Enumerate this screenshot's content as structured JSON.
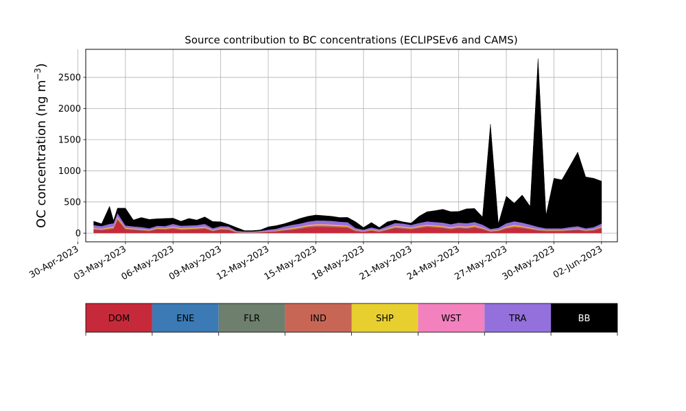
{
  "chart_data": {
    "type": "area",
    "stacked": true,
    "title": "Source contribution to BC concentrations (ECLIPSEv6 and CAMS)",
    "ylabel": "OC concentration (ng m",
    "ylabel_sup": "−3",
    "ylabel_close": ")",
    "xlabel": "",
    "grid": true,
    "x_range": [
      "2023-04-30T12:00",
      "2023-06-03T00:00"
    ],
    "ylim": [
      -140,
      2950
    ],
    "y_ticks": [
      0,
      500,
      1000,
      1500,
      2000,
      2500
    ],
    "y_tick_labels": [
      "0",
      "500",
      "1000",
      "1500",
      "2000",
      "2500"
    ],
    "x_ticks": [
      "2023-04-30",
      "2023-05-03",
      "2023-05-06",
      "2023-05-09",
      "2023-05-12",
      "2023-05-15",
      "2023-05-18",
      "2023-05-21",
      "2023-05-24",
      "2023-05-27",
      "2023-05-30",
      "2023-06-02"
    ],
    "x_tick_labels": [
      "30-Apr-2023",
      "03-May-2023",
      "06-May-2023",
      "09-May-2023",
      "12-May-2023",
      "15-May-2023",
      "18-May-2023",
      "21-May-2023",
      "24-May-2023",
      "27-May-2023",
      "30-May-2023",
      "02-Jun-2023"
    ],
    "x": [
      "2023-05-01T00:00",
      "2023-05-01T12:00",
      "2023-05-02T00:00",
      "2023-05-02T06:00",
      "2023-05-02T12:00",
      "2023-05-03T00:00",
      "2023-05-03T12:00",
      "2023-05-04T00:00",
      "2023-05-04T12:00",
      "2023-05-05T00:00",
      "2023-05-05T12:00",
      "2023-05-06T00:00",
      "2023-05-06T12:00",
      "2023-05-07T00:00",
      "2023-05-07T12:00",
      "2023-05-08T00:00",
      "2023-05-08T12:00",
      "2023-05-09T00:00",
      "2023-05-09T12:00",
      "2023-05-10T00:00",
      "2023-05-10T12:00",
      "2023-05-11T00:00",
      "2023-05-11T12:00",
      "2023-05-12T00:00",
      "2023-05-12T12:00",
      "2023-05-13T00:00",
      "2023-05-13T12:00",
      "2023-05-14T00:00",
      "2023-05-14T12:00",
      "2023-05-15T00:00",
      "2023-05-15T12:00",
      "2023-05-16T00:00",
      "2023-05-16T12:00",
      "2023-05-17T00:00",
      "2023-05-17T12:00",
      "2023-05-18T00:00",
      "2023-05-18T12:00",
      "2023-05-19T00:00",
      "2023-05-19T12:00",
      "2023-05-20T00:00",
      "2023-05-20T12:00",
      "2023-05-21T00:00",
      "2023-05-21T12:00",
      "2023-05-22T00:00",
      "2023-05-22T12:00",
      "2023-05-23T00:00",
      "2023-05-23T12:00",
      "2023-05-24T00:00",
      "2023-05-24T12:00",
      "2023-05-25T00:00",
      "2023-05-25T12:00",
      "2023-05-26T00:00",
      "2023-05-26T12:00",
      "2023-05-27T00:00",
      "2023-05-27T12:00",
      "2023-05-28T00:00",
      "2023-05-28T12:00",
      "2023-05-29T00:00",
      "2023-05-29T12:00",
      "2023-05-30T00:00",
      "2023-05-30T12:00",
      "2023-05-31T00:00",
      "2023-05-31T12:00",
      "2023-06-01T00:00",
      "2023-06-01T12:00",
      "2023-06-02T00:00"
    ],
    "series": [
      {
        "name": "DOM",
        "color": "#c62a3a",
        "values": [
          55,
          45,
          60,
          70,
          210,
          60,
          50,
          40,
          30,
          60,
          55,
          70,
          50,
          55,
          60,
          70,
          30,
          55,
          50,
          10,
          5,
          5,
          10,
          20,
          25,
          40,
          50,
          70,
          90,
          100,
          100,
          95,
          90,
          85,
          30,
          20,
          40,
          20,
          50,
          80,
          70,
          60,
          80,
          100,
          90,
          80,
          60,
          80,
          70,
          90,
          60,
          20,
          30,
          70,
          90,
          80,
          60,
          40,
          30,
          30,
          30,
          40,
          50,
          30,
          40,
          80
        ]
      },
      {
        "name": "ENE",
        "color": "#3b7ab5",
        "values": [
          3,
          3,
          3,
          3,
          5,
          3,
          3,
          3,
          3,
          3,
          3,
          3,
          3,
          3,
          3,
          3,
          3,
          3,
          3,
          2,
          2,
          2,
          2,
          2,
          2,
          3,
          3,
          3,
          3,
          3,
          3,
          3,
          3,
          3,
          3,
          2,
          2,
          2,
          3,
          3,
          3,
          3,
          3,
          3,
          3,
          3,
          3,
          3,
          3,
          3,
          3,
          3,
          3,
          3,
          3,
          3,
          3,
          3,
          3,
          3,
          3,
          3,
          3,
          3,
          3,
          3
        ]
      },
      {
        "name": "FLR",
        "color": "#6e7f6e",
        "values": [
          2,
          2,
          2,
          2,
          3,
          2,
          2,
          2,
          2,
          2,
          2,
          2,
          2,
          2,
          2,
          2,
          2,
          2,
          2,
          1,
          1,
          1,
          1,
          1,
          1,
          2,
          2,
          2,
          2,
          2,
          2,
          2,
          2,
          2,
          2,
          1,
          1,
          1,
          2,
          2,
          2,
          2,
          2,
          2,
          2,
          2,
          2,
          2,
          2,
          2,
          2,
          2,
          2,
          2,
          2,
          2,
          2,
          2,
          2,
          2,
          2,
          2,
          2,
          2,
          2,
          2
        ]
      },
      {
        "name": "IND",
        "color": "#c86656",
        "values": [
          10,
          10,
          15,
          15,
          20,
          10,
          10,
          10,
          8,
          10,
          10,
          15,
          12,
          12,
          12,
          15,
          8,
          10,
          10,
          4,
          3,
          3,
          4,
          5,
          8,
          12,
          15,
          15,
          18,
          20,
          20,
          20,
          18,
          18,
          8,
          5,
          8,
          6,
          10,
          15,
          15,
          12,
          15,
          15,
          15,
          15,
          15,
          15,
          15,
          15,
          12,
          8,
          10,
          15,
          18,
          15,
          12,
          10,
          8,
          8,
          8,
          10,
          10,
          8,
          10,
          15
        ]
      },
      {
        "name": "SHP",
        "color": "#e8cf30",
        "values": [
          8,
          8,
          10,
          10,
          15,
          8,
          8,
          8,
          6,
          8,
          8,
          10,
          10,
          10,
          10,
          10,
          6,
          8,
          8,
          3,
          2,
          2,
          3,
          4,
          5,
          8,
          10,
          10,
          12,
          12,
          12,
          12,
          12,
          10,
          5,
          4,
          6,
          5,
          8,
          10,
          10,
          8,
          10,
          10,
          10,
          10,
          10,
          10,
          10,
          10,
          8,
          5,
          6,
          10,
          12,
          10,
          8,
          6,
          5,
          5,
          5,
          6,
          6,
          5,
          6,
          8
        ]
      },
      {
        "name": "WST",
        "color": "#f281bd",
        "values": [
          5,
          5,
          8,
          8,
          10,
          5,
          5,
          5,
          4,
          5,
          5,
          8,
          6,
          6,
          6,
          8,
          4,
          5,
          5,
          2,
          2,
          2,
          2,
          3,
          4,
          6,
          8,
          8,
          10,
          10,
          10,
          10,
          8,
          8,
          4,
          3,
          5,
          4,
          6,
          8,
          8,
          6,
          8,
          8,
          8,
          8,
          8,
          8,
          8,
          8,
          6,
          4,
          5,
          8,
          10,
          8,
          6,
          5,
          4,
          4,
          4,
          5,
          5,
          4,
          5,
          6
        ]
      },
      {
        "name": "TRA",
        "color": "#9370db",
        "values": [
          45,
          40,
          50,
          50,
          60,
          35,
          30,
          30,
          25,
          30,
          30,
          40,
          35,
          35,
          35,
          40,
          25,
          30,
          30,
          15,
          12,
          12,
          15,
          20,
          25,
          35,
          45,
          45,
          50,
          55,
          55,
          55,
          50,
          50,
          30,
          20,
          30,
          25,
          35,
          45,
          45,
          40,
          45,
          50,
          50,
          50,
          45,
          50,
          50,
          50,
          45,
          25,
          30,
          50,
          55,
          50,
          45,
          35,
          25,
          25,
          25,
          30,
          35,
          25,
          30,
          40
        ]
      },
      {
        "name": "BB",
        "color": "#000000",
        "values": [
          62,
          37,
          282,
          42,
          77,
          277,
          102,
          152,
          142,
          112,
          122,
          92,
          72,
          112,
          82,
          112,
          108,
          69,
          32,
          53,
          13,
          13,
          13,
          45,
          50,
          44,
          57,
          82,
          85,
          88,
          78,
          73,
          67,
          76,
          100,
          35,
          78,
          27,
          66,
          47,
          27,
          29,
          107,
          154,
          182,
          214,
          201,
          179,
          232,
          217,
          124,
          1683,
          64,
          434,
          290,
          444,
          294,
          2701,
          210,
          803,
          778,
          979,
          1189,
          825,
          784,
          680
        ]
      }
    ],
    "legend": {
      "placement": "bottom",
      "entries": [
        {
          "label": "DOM",
          "color": "#c62a3a",
          "text_color": "#000000"
        },
        {
          "label": "ENE",
          "color": "#3b7ab5",
          "text_color": "#000000"
        },
        {
          "label": "FLR",
          "color": "#6e7f6e",
          "text_color": "#000000"
        },
        {
          "label": "IND",
          "color": "#c86656",
          "text_color": "#000000"
        },
        {
          "label": "SHP",
          "color": "#e8cf30",
          "text_color": "#000000"
        },
        {
          "label": "WST",
          "color": "#f281bd",
          "text_color": "#000000"
        },
        {
          "label": "TRA",
          "color": "#9370db",
          "text_color": "#000000"
        },
        {
          "label": "BB",
          "color": "#000000",
          "text_color": "#ffffff"
        }
      ]
    }
  }
}
